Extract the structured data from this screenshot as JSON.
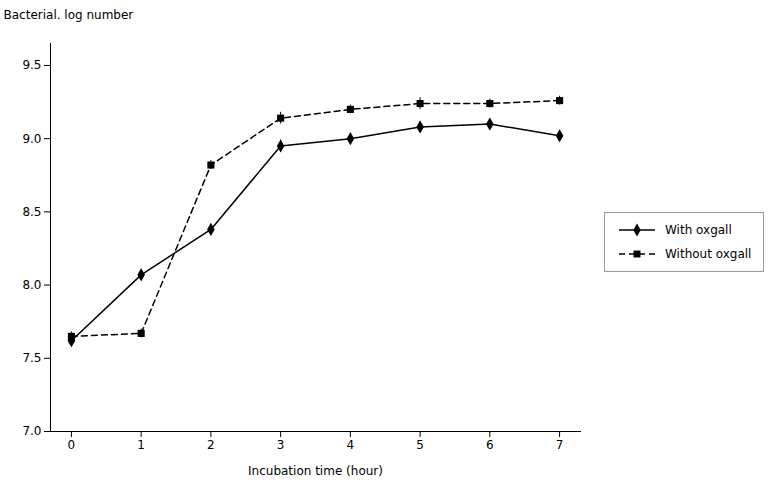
{
  "chart_data": {
    "type": "line",
    "xlabel": "Incubation time (hour)",
    "ylabel": "Bacterial. log number",
    "x": [
      0,
      1,
      2,
      3,
      4,
      5,
      6,
      7
    ],
    "series": [
      {
        "name": "With oxgall",
        "color": "#000000",
        "marker": "diamond",
        "line_style": "solid",
        "values": [
          7.62,
          8.07,
          8.38,
          8.95,
          9.0,
          9.08,
          9.1,
          9.02
        ],
        "error": [
          0.03,
          0.03,
          0.03,
          0.04,
          0.03,
          0.03,
          0.03,
          0.03
        ]
      },
      {
        "name": "Without oxgall",
        "color": "#000000",
        "marker": "square",
        "line_style": "dashed",
        "values": [
          7.65,
          7.67,
          8.82,
          9.14,
          9.2,
          9.24,
          9.24,
          9.26
        ],
        "error": [
          0.03,
          0.03,
          0.03,
          0.04,
          0.03,
          0.04,
          0.03,
          0.03
        ]
      }
    ],
    "xlim": [
      -0.3,
      7.3
    ],
    "ylim": [
      7.0,
      9.65
    ],
    "xticks": [
      0,
      1,
      2,
      3,
      4,
      5,
      6,
      7
    ],
    "yticks": [
      {
        "value": 7.0,
        "label": "7.0"
      },
      7.5,
      {
        "value": 8.0,
        "label": "8.0"
      },
      8.5,
      {
        "value": 9.0,
        "label": "9.0"
      },
      9.5
    ],
    "legend": "right",
    "grid": false
  }
}
